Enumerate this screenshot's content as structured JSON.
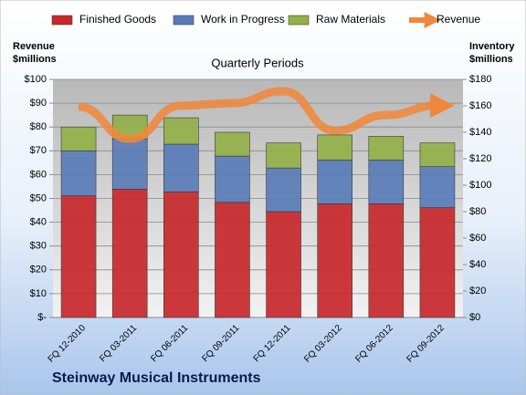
{
  "chart_data": {
    "type": "bar",
    "stacked": true,
    "title": "Quarterly Periods",
    "caption": "Steinway Musical Instruments",
    "y_label": "Revenue $millions",
    "y2_label": "Inventory $millions",
    "categories": [
      "FQ 12-2010",
      "FQ 03-2011",
      "FQ 06-2011",
      "FQ 09-2011",
      "FQ 12-2011",
      "FQ 03-2012",
      "FQ 06-2012",
      "FQ 09-2012"
    ],
    "series": [
      {
        "name": "Finished Goods",
        "color": "#c8282b",
        "axis": "y2",
        "values": [
          92,
          97,
          95,
          87,
          80,
          86,
          86,
          83
        ]
      },
      {
        "name": "Work in Progress",
        "color": "#5a7cb8",
        "axis": "y2",
        "values": [
          34,
          38,
          36,
          35,
          33,
          33,
          33,
          31
        ]
      },
      {
        "name": "Raw Materials",
        "color": "#93b048",
        "axis": "y2",
        "values": [
          18,
          18,
          20,
          18,
          19,
          19,
          18,
          18
        ]
      },
      {
        "name": "Revenue",
        "color": "#f0883c",
        "type": "line",
        "values": [
          88.5,
          75,
          89,
          90,
          95,
          78.5,
          85,
          89
        ]
      }
    ],
    "ylim": [
      0,
      100
    ],
    "yticks": [
      {
        "value": 0,
        "label": "$-"
      },
      {
        "value": 10,
        "label": "$10"
      },
      {
        "value": 20,
        "label": "$20"
      },
      {
        "value": 30,
        "label": "$30"
      },
      {
        "value": 40,
        "label": "$40"
      },
      {
        "value": 50,
        "label": "$50"
      },
      {
        "value": 60,
        "label": "$60"
      },
      {
        "value": 70,
        "label": "$70"
      },
      {
        "value": 80,
        "label": "$80"
      },
      {
        "value": 90,
        "label": "$90"
      },
      {
        "value": 100,
        "label": "$100"
      }
    ],
    "y2lim": [
      0,
      180
    ],
    "y2ticks": [
      {
        "value": 0,
        "label": "$0"
      },
      {
        "value": 20,
        "label": "$20"
      },
      {
        "value": 40,
        "label": "$40"
      },
      {
        "value": 60,
        "label": "$60"
      },
      {
        "value": 80,
        "label": "$80"
      },
      {
        "value": 100,
        "label": "$100"
      },
      {
        "value": 120,
        "label": "$120"
      },
      {
        "value": 140,
        "label": "$140"
      },
      {
        "value": 160,
        "label": "$160"
      },
      {
        "value": 180,
        "label": "$180"
      }
    ],
    "grid": true,
    "legend": "top"
  }
}
